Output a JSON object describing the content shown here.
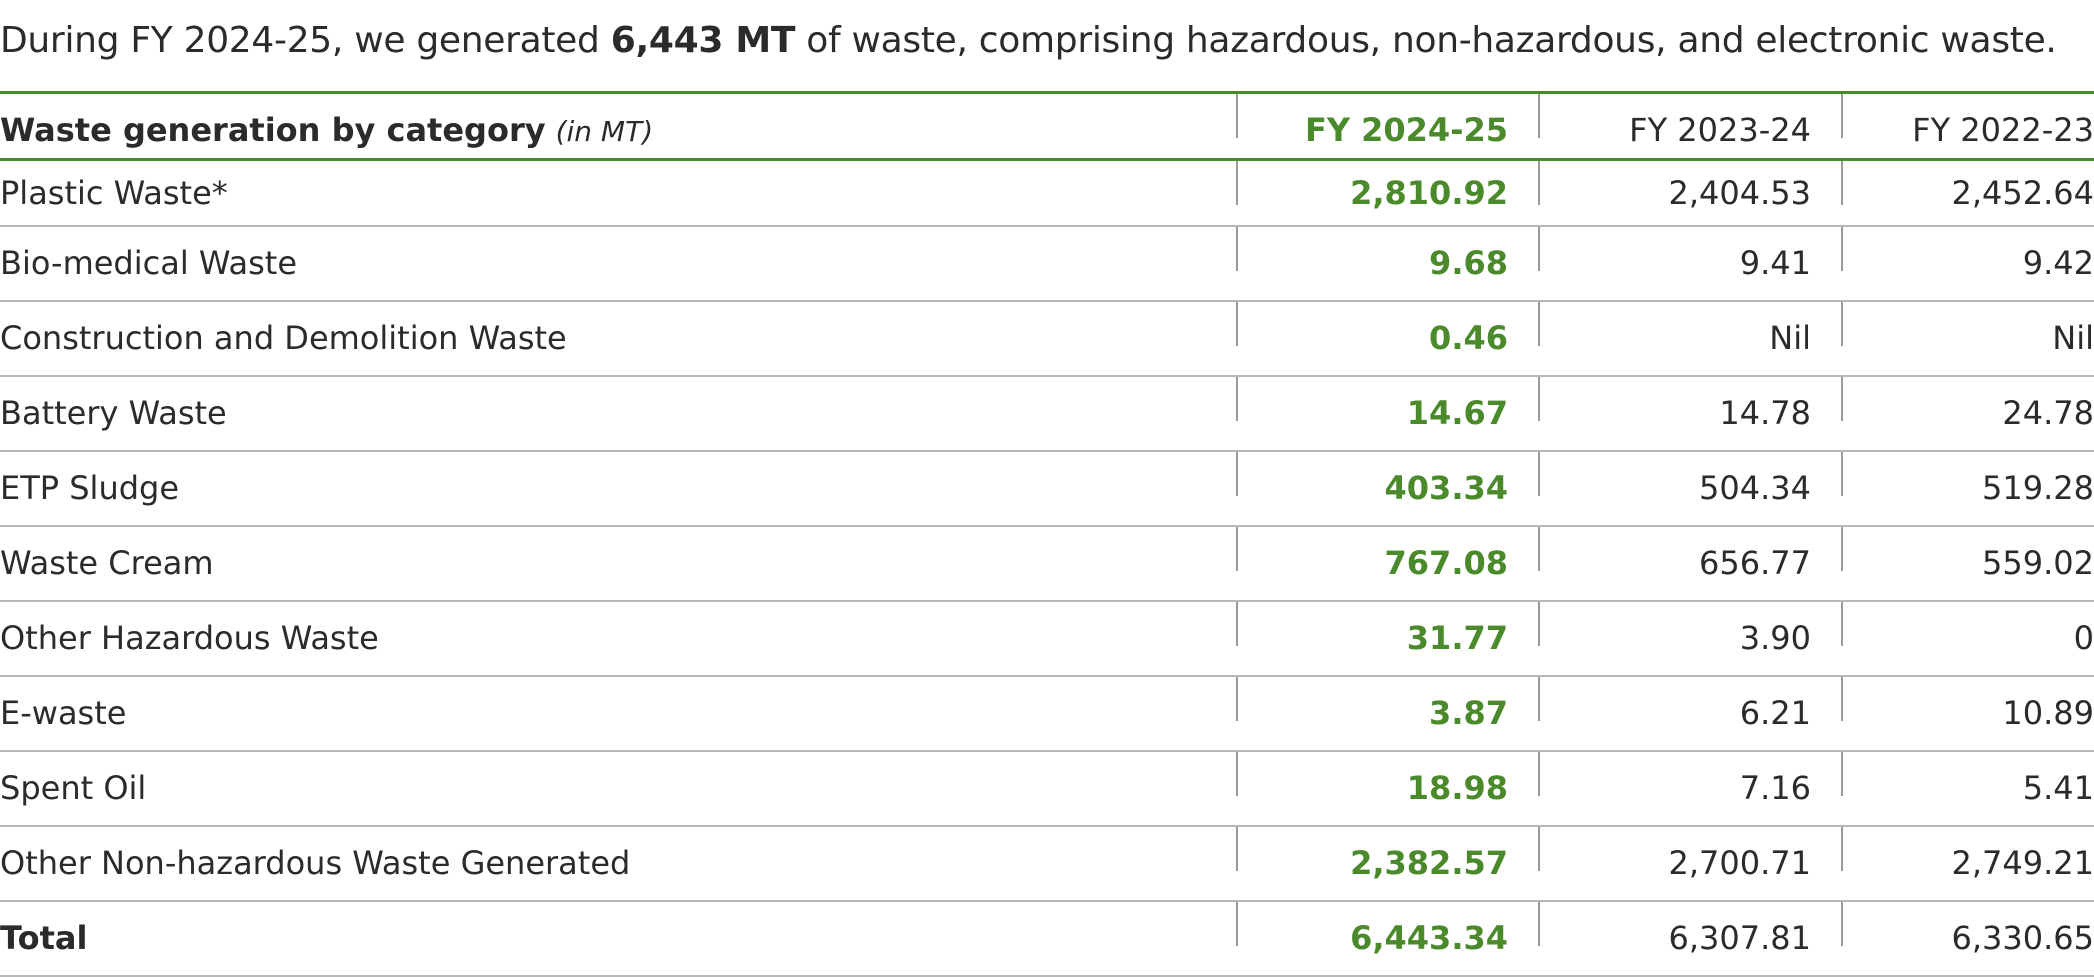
{
  "intro": {
    "before": "During FY 2024-25, we generated ",
    "highlight": "6,443 MT",
    "after": " of waste, comprising hazardous, non-hazardous, and electronic waste."
  },
  "table": {
    "header": {
      "title": "Waste generation by category",
      "unit": "(in MT)",
      "columns": [
        "FY 2024-25",
        "FY 2023-24",
        "FY 2022-23"
      ]
    },
    "rows": [
      {
        "label": "Plastic Waste*",
        "values": [
          "2,810.92",
          "2,404.53",
          "2,452.64"
        ]
      },
      {
        "label": "Bio-medical Waste",
        "values": [
          "9.68",
          "9.41",
          "9.42"
        ]
      },
      {
        "label": "Construction and Demolition Waste",
        "values": [
          "0.46",
          "Nil",
          "Nil"
        ]
      },
      {
        "label": "Battery Waste",
        "values": [
          "14.67",
          "14.78",
          "24.78"
        ]
      },
      {
        "label": "ETP Sludge",
        "values": [
          "403.34",
          "504.34",
          "519.28"
        ]
      },
      {
        "label": "Waste Cream",
        "values": [
          "767.08",
          "656.77",
          "559.02"
        ]
      },
      {
        "label": "Other Hazardous Waste",
        "values": [
          "31.77",
          "3.90",
          "0"
        ]
      },
      {
        "label": "E-waste",
        "values": [
          "3.87",
          "6.21",
          "10.89"
        ]
      },
      {
        "label": "Spent Oil",
        "values": [
          "18.98",
          "7.16",
          "5.41"
        ]
      },
      {
        "label": "Other Non-hazardous Waste Generated",
        "values": [
          "2,382.57",
          "2,700.71",
          "2,749.21"
        ]
      },
      {
        "label": "Total",
        "values": [
          "6,443.34",
          "6,307.81",
          "6,330.65"
        ]
      }
    ]
  },
  "colors": {
    "accent_green": "#4a8a2a",
    "text": "#2b2b2b",
    "row_rule": "#b8b8b8"
  }
}
